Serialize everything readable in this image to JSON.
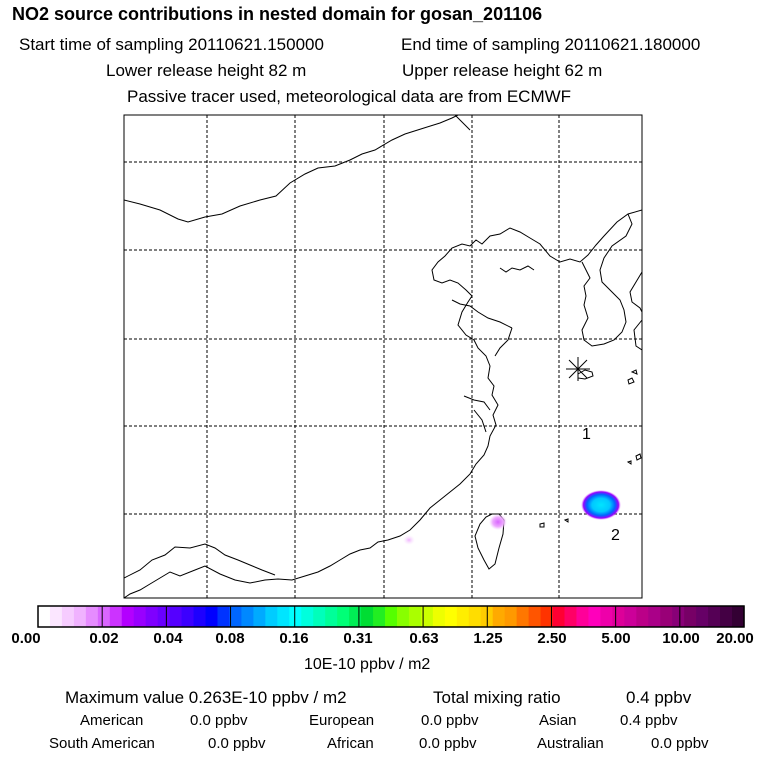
{
  "header": {
    "title": "NO2 source contributions in nested domain for gosan_201106",
    "start_label": "Start time of sampling 20110621.150000",
    "end_label": "End time of sampling 20110621.180000",
    "lower_height": "Lower release height   82 m",
    "upper_height": "Upper release height   62 m",
    "info": "Passive tracer used, meteorological data are from ECMWF"
  },
  "map": {
    "receptor_symbol": "star-marker",
    "labels": [
      "1",
      "2"
    ],
    "colors": {
      "border": "#000000",
      "grid": "#000000"
    }
  },
  "colorbar": {
    "ticks": [
      "0.00",
      "0.02",
      "0.04",
      "0.08",
      "0.16",
      "0.31",
      "0.63",
      "1.25",
      "2.50",
      "5.00",
      "10.00",
      "20.00"
    ],
    "unit": "10E-10 ppbv / m2",
    "swatches": [
      "#ffffff",
      "#fbe6ff",
      "#f6ccff",
      "#f0b2ff",
      "#e68cff",
      "#d966ff",
      "#cc33ff",
      "#b300ff",
      "#9900ff",
      "#7f00ff",
      "#6a00ff",
      "#5500ff",
      "#3c00ff",
      "#1e00ff",
      "#0000ff",
      "#0033ff",
      "#0066ff",
      "#0088ff",
      "#00aaff",
      "#00ccff",
      "#00e5ff",
      "#00ffff",
      "#00ffdd",
      "#00ffbb",
      "#00ff99",
      "#00ff77",
      "#00ee55",
      "#00dd33",
      "#22ee22",
      "#55ff00",
      "#88ff00",
      "#aaff00",
      "#ccff00",
      "#eeff00",
      "#ffff00",
      "#ffee00",
      "#ffdd00",
      "#ffcc00",
      "#ffaa00",
      "#ff9900",
      "#ff7700",
      "#ff5500",
      "#ff3300",
      "#ff0033",
      "#ff0066",
      "#ff0099",
      "#ff00bb",
      "#ee00aa",
      "#dd0099",
      "#cc0099",
      "#bb0088",
      "#aa0088",
      "#990077",
      "#880077",
      "#770066",
      "#660066",
      "#550055",
      "#440044",
      "#330033"
    ]
  },
  "summary": {
    "max_label": "Maximum value  0.263E-10 ppbv / m2",
    "total_label": "Total mixing ratio",
    "total_value": "0.4 ppbv",
    "american": {
      "label": "American",
      "value": "0.0 ppbv"
    },
    "european": {
      "label": "European",
      "value": "0.0 ppbv"
    },
    "asian": {
      "label": "Asian",
      "value": "0.4 ppbv"
    },
    "south_american": {
      "label": "South American",
      "value": "0.0 ppbv"
    },
    "african": {
      "label": "African",
      "value": "0.0 ppbv"
    },
    "australian": {
      "label": "Australian",
      "value": "0.0 ppbv"
    }
  }
}
